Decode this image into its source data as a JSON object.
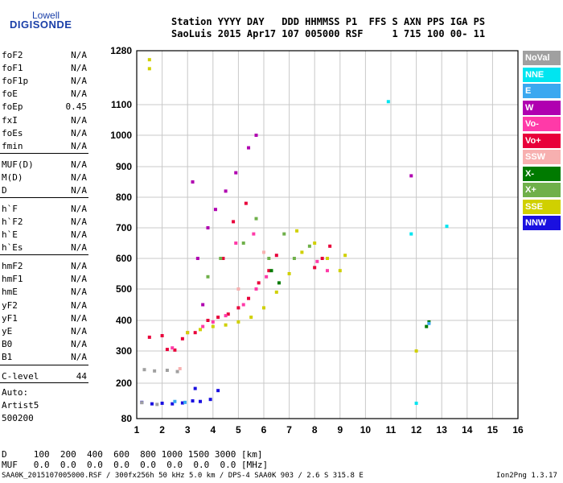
{
  "logo": {
    "line1": "Lowell",
    "line2": "DIGISONDE"
  },
  "header": {
    "row1": "Station YYYY DAY   DDD HHMMSS P1  FFS S AXN PPS IGA PS",
    "row2": "SaoLuis 2015 Apr17 107 005000 RSF     1 715 100 00- 11"
  },
  "params": [
    {
      "name": "foF2",
      "value": "N/A"
    },
    {
      "name": "foF1",
      "value": "N/A"
    },
    {
      "name": "foF1p",
      "value": "N/A"
    },
    {
      "name": "foE",
      "value": "N/A"
    },
    {
      "name": "foEp",
      "value": "0.45"
    },
    {
      "name": "fxI",
      "value": "N/A"
    },
    {
      "name": "foEs",
      "value": "N/A"
    },
    {
      "name": "fmin",
      "value": "N/A"
    },
    {
      "name": "MUF(D)",
      "value": "N/A"
    },
    {
      "name": "M(D)",
      "value": "N/A"
    },
    {
      "name": "D",
      "value": "N/A"
    },
    {
      "name": "h`F",
      "value": "N/A"
    },
    {
      "name": "h`F2",
      "value": "N/A"
    },
    {
      "name": "h`E",
      "value": "N/A"
    },
    {
      "name": "h`Es",
      "value": "N/A"
    },
    {
      "name": "hmF2",
      "value": "N/A"
    },
    {
      "name": "hmF1",
      "value": "N/A"
    },
    {
      "name": "hmE",
      "value": "N/A"
    },
    {
      "name": "yF2",
      "value": "N/A"
    },
    {
      "name": "yF1",
      "value": "N/A"
    },
    {
      "name": "yE",
      "value": "N/A"
    },
    {
      "name": "B0",
      "value": "N/A"
    },
    {
      "name": "B1",
      "value": "N/A"
    },
    {
      "name": "C-level",
      "value": "44"
    }
  ],
  "autoscaler": {
    "label": "Auto:",
    "name": "Artist5",
    "version": "500200"
  },
  "legend": [
    {
      "label": "NoVal",
      "color": "#a0a0a0"
    },
    {
      "label": "NNE",
      "color": "#00e5f0"
    },
    {
      "label": "E",
      "color": "#3aa8f0"
    },
    {
      "label": "W",
      "color": "#b000b0"
    },
    {
      "label": "Vo-",
      "color": "#ff3aa8"
    },
    {
      "label": "Vo+",
      "color": "#e8003a"
    },
    {
      "label": "SSW",
      "color": "#f7b0b0"
    },
    {
      "label": "X-",
      "color": "#007a00"
    },
    {
      "label": "X+",
      "color": "#6fb04a"
    },
    {
      "label": "SSE",
      "color": "#d0d000"
    },
    {
      "label": "NNW",
      "color": "#1a10e0"
    }
  ],
  "muf_table": {
    "d_row": "D     100  200  400  600  800 1000 1500 3000 [km]",
    "muf_row": "MUF   0.0  0.0  0.0  0.0  0.0  0.0  0.0  0.0 [MHz]"
  },
  "footer": {
    "left": "SAA0K_2015107005000.RSF / 300fx256h 50 kHz 5.0 km / DPS-4 SAA0K 903 / 2.6 S 315.8 E",
    "right": "Ion2Png 1.3.17"
  },
  "chart_data": {
    "type": "scatter",
    "title": "",
    "xlabel": "",
    "ylabel": "",
    "xlim": [
      1,
      16
    ],
    "ylim": [
      80,
      1280
    ],
    "x_ticks": [
      1,
      2,
      3,
      4,
      5,
      6,
      7,
      8,
      9,
      10,
      11,
      12,
      13,
      14,
      15,
      16
    ],
    "y_ticks": [
      80,
      200,
      300,
      400,
      500,
      600,
      700,
      800,
      900,
      1000,
      1100,
      1280
    ],
    "grid": true,
    "y_scale": "nonlinear (ionogram virtual height)",
    "series": [
      {
        "name": "Vo+",
        "color": "#e8003a",
        "points": [
          [
            2.2,
            305
          ],
          [
            2.5,
            303
          ],
          [
            2.8,
            340
          ],
          [
            3.3,
            360
          ],
          [
            3.8,
            400
          ],
          [
            4.2,
            410
          ],
          [
            4.6,
            420
          ],
          [
            5.0,
            440
          ],
          [
            5.4,
            470
          ],
          [
            5.8,
            520
          ],
          [
            6.2,
            560
          ],
          [
            6.5,
            610
          ],
          [
            4.4,
            600
          ],
          [
            4.8,
            720
          ],
          [
            5.3,
            780
          ],
          [
            8.0,
            570
          ],
          [
            8.3,
            600
          ],
          [
            8.6,
            640
          ],
          [
            1.5,
            345
          ],
          [
            2.0,
            350
          ]
        ]
      },
      {
        "name": "Vo-",
        "color": "#ff3aa8",
        "points": [
          [
            2.4,
            310
          ],
          [
            3.0,
            360
          ],
          [
            3.6,
            380
          ],
          [
            4.0,
            395
          ],
          [
            4.5,
            415
          ],
          [
            5.2,
            450
          ],
          [
            5.7,
            500
          ],
          [
            6.1,
            540
          ],
          [
            8.1,
            590
          ],
          [
            8.5,
            560
          ],
          [
            4.9,
            650
          ],
          [
            5.6,
            680
          ]
        ]
      },
      {
        "name": "W",
        "color": "#b000b0",
        "points": [
          [
            3.2,
            850
          ],
          [
            3.4,
            600
          ],
          [
            3.8,
            700
          ],
          [
            4.1,
            760
          ],
          [
            4.5,
            820
          ],
          [
            4.9,
            880
          ],
          [
            5.4,
            960
          ],
          [
            5.7,
            1000
          ],
          [
            3.6,
            450
          ],
          [
            11.8,
            870
          ]
        ]
      },
      {
        "name": "SSE",
        "color": "#d0d000",
        "points": [
          [
            3.0,
            360
          ],
          [
            3.5,
            370
          ],
          [
            4.0,
            380
          ],
          [
            4.5,
            385
          ],
          [
            5.0,
            395
          ],
          [
            5.5,
            410
          ],
          [
            6.0,
            440
          ],
          [
            6.5,
            490
          ],
          [
            7.0,
            550
          ],
          [
            7.5,
            620
          ],
          [
            8.0,
            650
          ],
          [
            8.5,
            600
          ],
          [
            9.0,
            560
          ],
          [
            9.2,
            610
          ],
          [
            7.3,
            690
          ],
          [
            1.5,
            1250
          ],
          [
            1.5,
            1220
          ],
          [
            12.0,
            300
          ]
        ]
      },
      {
        "name": "X+",
        "color": "#6fb04a",
        "points": [
          [
            3.8,
            540
          ],
          [
            4.3,
            600
          ],
          [
            5.2,
            650
          ],
          [
            6.2,
            600
          ],
          [
            6.8,
            680
          ],
          [
            7.2,
            600
          ],
          [
            7.8,
            640
          ],
          [
            5.7,
            730
          ]
        ]
      },
      {
        "name": "X-",
        "color": "#007a00",
        "points": [
          [
            6.3,
            560
          ],
          [
            6.6,
            520
          ],
          [
            12.5,
            395
          ],
          [
            12.4,
            380
          ]
        ]
      },
      {
        "name": "NNW",
        "color": "#1a10e0",
        "points": [
          [
            1.2,
            135
          ],
          [
            1.6,
            130
          ],
          [
            2.0,
            132
          ],
          [
            2.4,
            130
          ],
          [
            2.8,
            133
          ],
          [
            3.2,
            140
          ],
          [
            3.5,
            138
          ],
          [
            3.9,
            145
          ],
          [
            4.2,
            175
          ],
          [
            3.3,
            182
          ]
        ]
      },
      {
        "name": "NNE",
        "color": "#00e5f0",
        "points": [
          [
            12.0,
            132
          ],
          [
            11.8,
            680
          ],
          [
            13.2,
            705
          ],
          [
            10.9,
            1110
          ]
        ]
      },
      {
        "name": "E",
        "color": "#3aa8f0",
        "points": [
          [
            2.5,
            138
          ],
          [
            2.9,
            135
          ],
          [
            12.5,
            390
          ]
        ]
      },
      {
        "name": "NoVal",
        "color": "#a0a0a0",
        "points": [
          [
            1.3,
            242
          ],
          [
            1.7,
            238
          ],
          [
            2.2,
            240
          ],
          [
            2.6,
            236
          ],
          [
            1.2,
            134
          ],
          [
            1.8,
            128
          ]
        ]
      },
      {
        "name": "SSW",
        "color": "#f7b0b0",
        "points": [
          [
            2.7,
            245
          ],
          [
            5.0,
            500
          ],
          [
            6.0,
            620
          ]
        ]
      }
    ]
  }
}
